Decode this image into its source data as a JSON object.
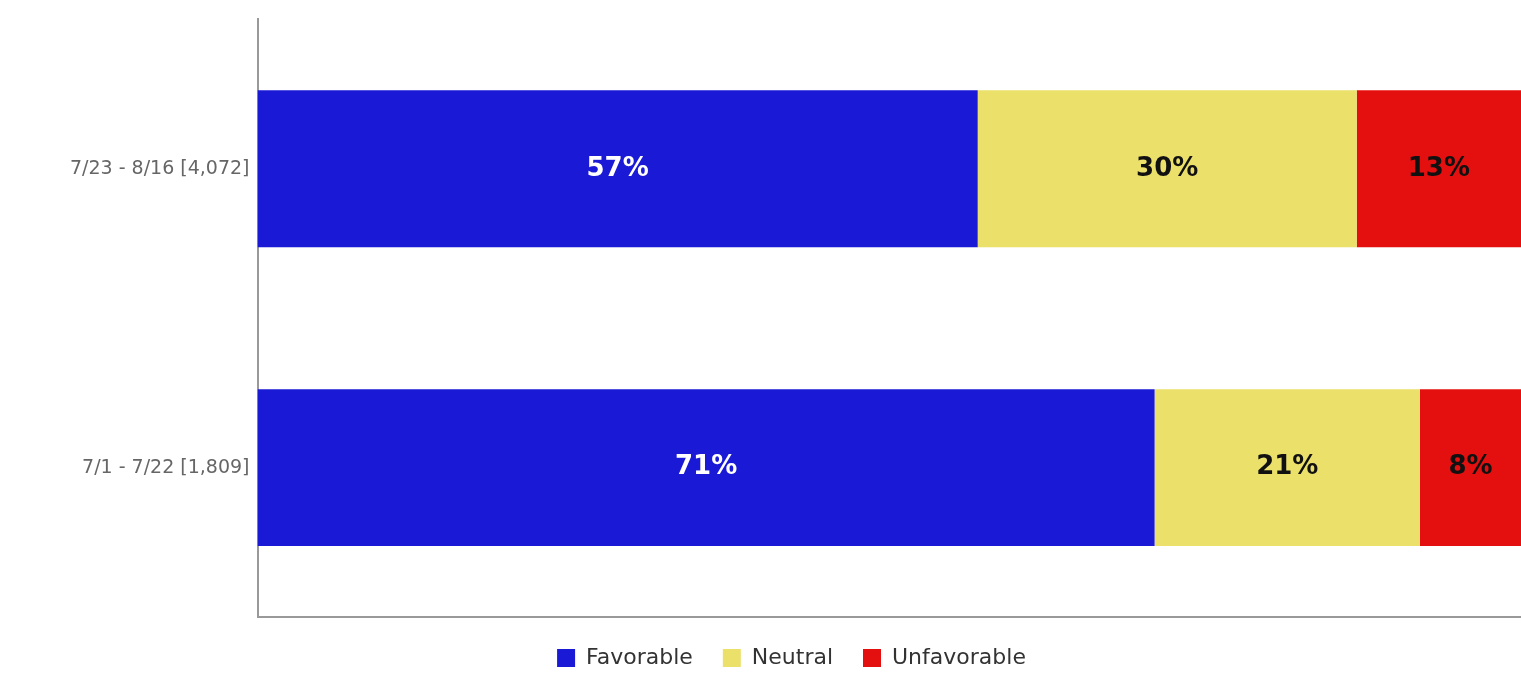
{
  "chart_data": {
    "type": "bar",
    "orientation": "horizontal",
    "stacked": true,
    "categories": [
      "7/23 - 8/16 [4,072]",
      "7/1 - 7/22 [1,809]"
    ],
    "series": [
      {
        "name": "Favorable",
        "color": "#1a1ad6",
        "values": [
          57,
          71
        ],
        "value_labels": [
          "57%",
          "71%"
        ]
      },
      {
        "name": "Neutral",
        "color": "#ebe06a",
        "values": [
          30,
          21
        ],
        "value_labels": [
          "30%",
          "21%"
        ]
      },
      {
        "name": "Unfavorable",
        "color": "#e41010",
        "values": [
          13,
          8
        ],
        "value_labels": [
          "13%",
          "8%"
        ]
      }
    ],
    "xlim": [
      0,
      100
    ],
    "tick_labels": "y",
    "grid": false,
    "legend": "bottom"
  }
}
